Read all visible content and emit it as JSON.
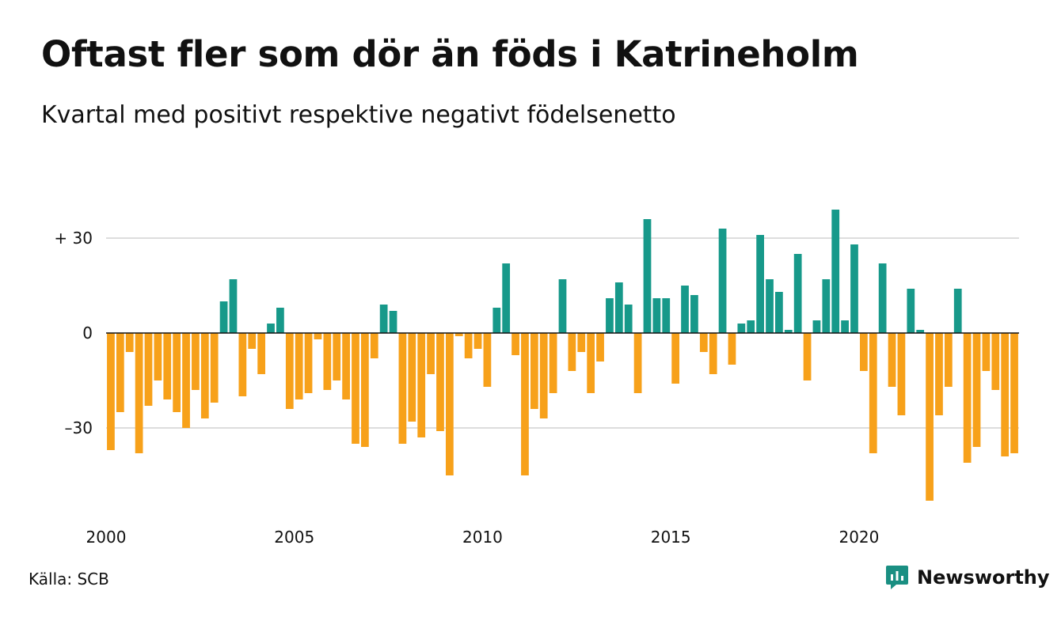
{
  "header": {
    "title": "Oftast fler som dör än föds i Katrineholm",
    "subtitle": "Kvartal med positivt respektive negativt födelsenetto"
  },
  "footer": {
    "source": "Källa: SCB",
    "brand": "Newsworthy",
    "brand_color": "#1a8f82"
  },
  "chart_data": {
    "type": "bar",
    "xlabel": "",
    "ylabel": "",
    "x_start_year": 2000,
    "x_end_year": 2024.25,
    "xlim": [
      2000,
      2024.25
    ],
    "ylim": [
      -55,
      40
    ],
    "grid": true,
    "legend": "none",
    "colors": {
      "positive": "#17998a",
      "negative": "#f7a11a",
      "grid": "#dddddd",
      "zero_line": "#111111"
    },
    "y_ticks": [
      {
        "value": 30,
        "label": "+ 30"
      },
      {
        "value": 0,
        "label": "0"
      },
      {
        "value": -30,
        "label": "–30"
      }
    ],
    "x_ticks": [
      {
        "value": 2000,
        "label": "2000"
      },
      {
        "value": 2005,
        "label": "2005"
      },
      {
        "value": 2010,
        "label": "2010"
      },
      {
        "value": 2015,
        "label": "2015"
      },
      {
        "value": 2020,
        "label": "2020"
      }
    ],
    "values": [
      -37,
      -25,
      -6,
      -38,
      -23,
      -15,
      -21,
      -25,
      -30,
      -18,
      -27,
      -22,
      10,
      17,
      -20,
      -5,
      -13,
      3,
      8,
      -24,
      -21,
      -19,
      -2,
      -18,
      -15,
      -21,
      -35,
      -36,
      -8,
      9,
      7,
      -35,
      -28,
      -33,
      -13,
      -31,
      -45,
      -1,
      -8,
      -5,
      -17,
      8,
      22,
      -7,
      -45,
      -24,
      -27,
      -19,
      17,
      -12,
      -6,
      -19,
      -9,
      11,
      16,
      9,
      -19,
      36,
      11,
      11,
      -16,
      15,
      12,
      -6,
      -13,
      33,
      -10,
      3,
      4,
      31,
      17,
      13,
      1,
      25,
      -15,
      4,
      17,
      39,
      4,
      28,
      -12,
      -38,
      22,
      -17,
      -26,
      14,
      1,
      -53,
      -26,
      -17,
      14,
      -41,
      -36,
      -12,
      -18,
      -39,
      -38
    ]
  }
}
